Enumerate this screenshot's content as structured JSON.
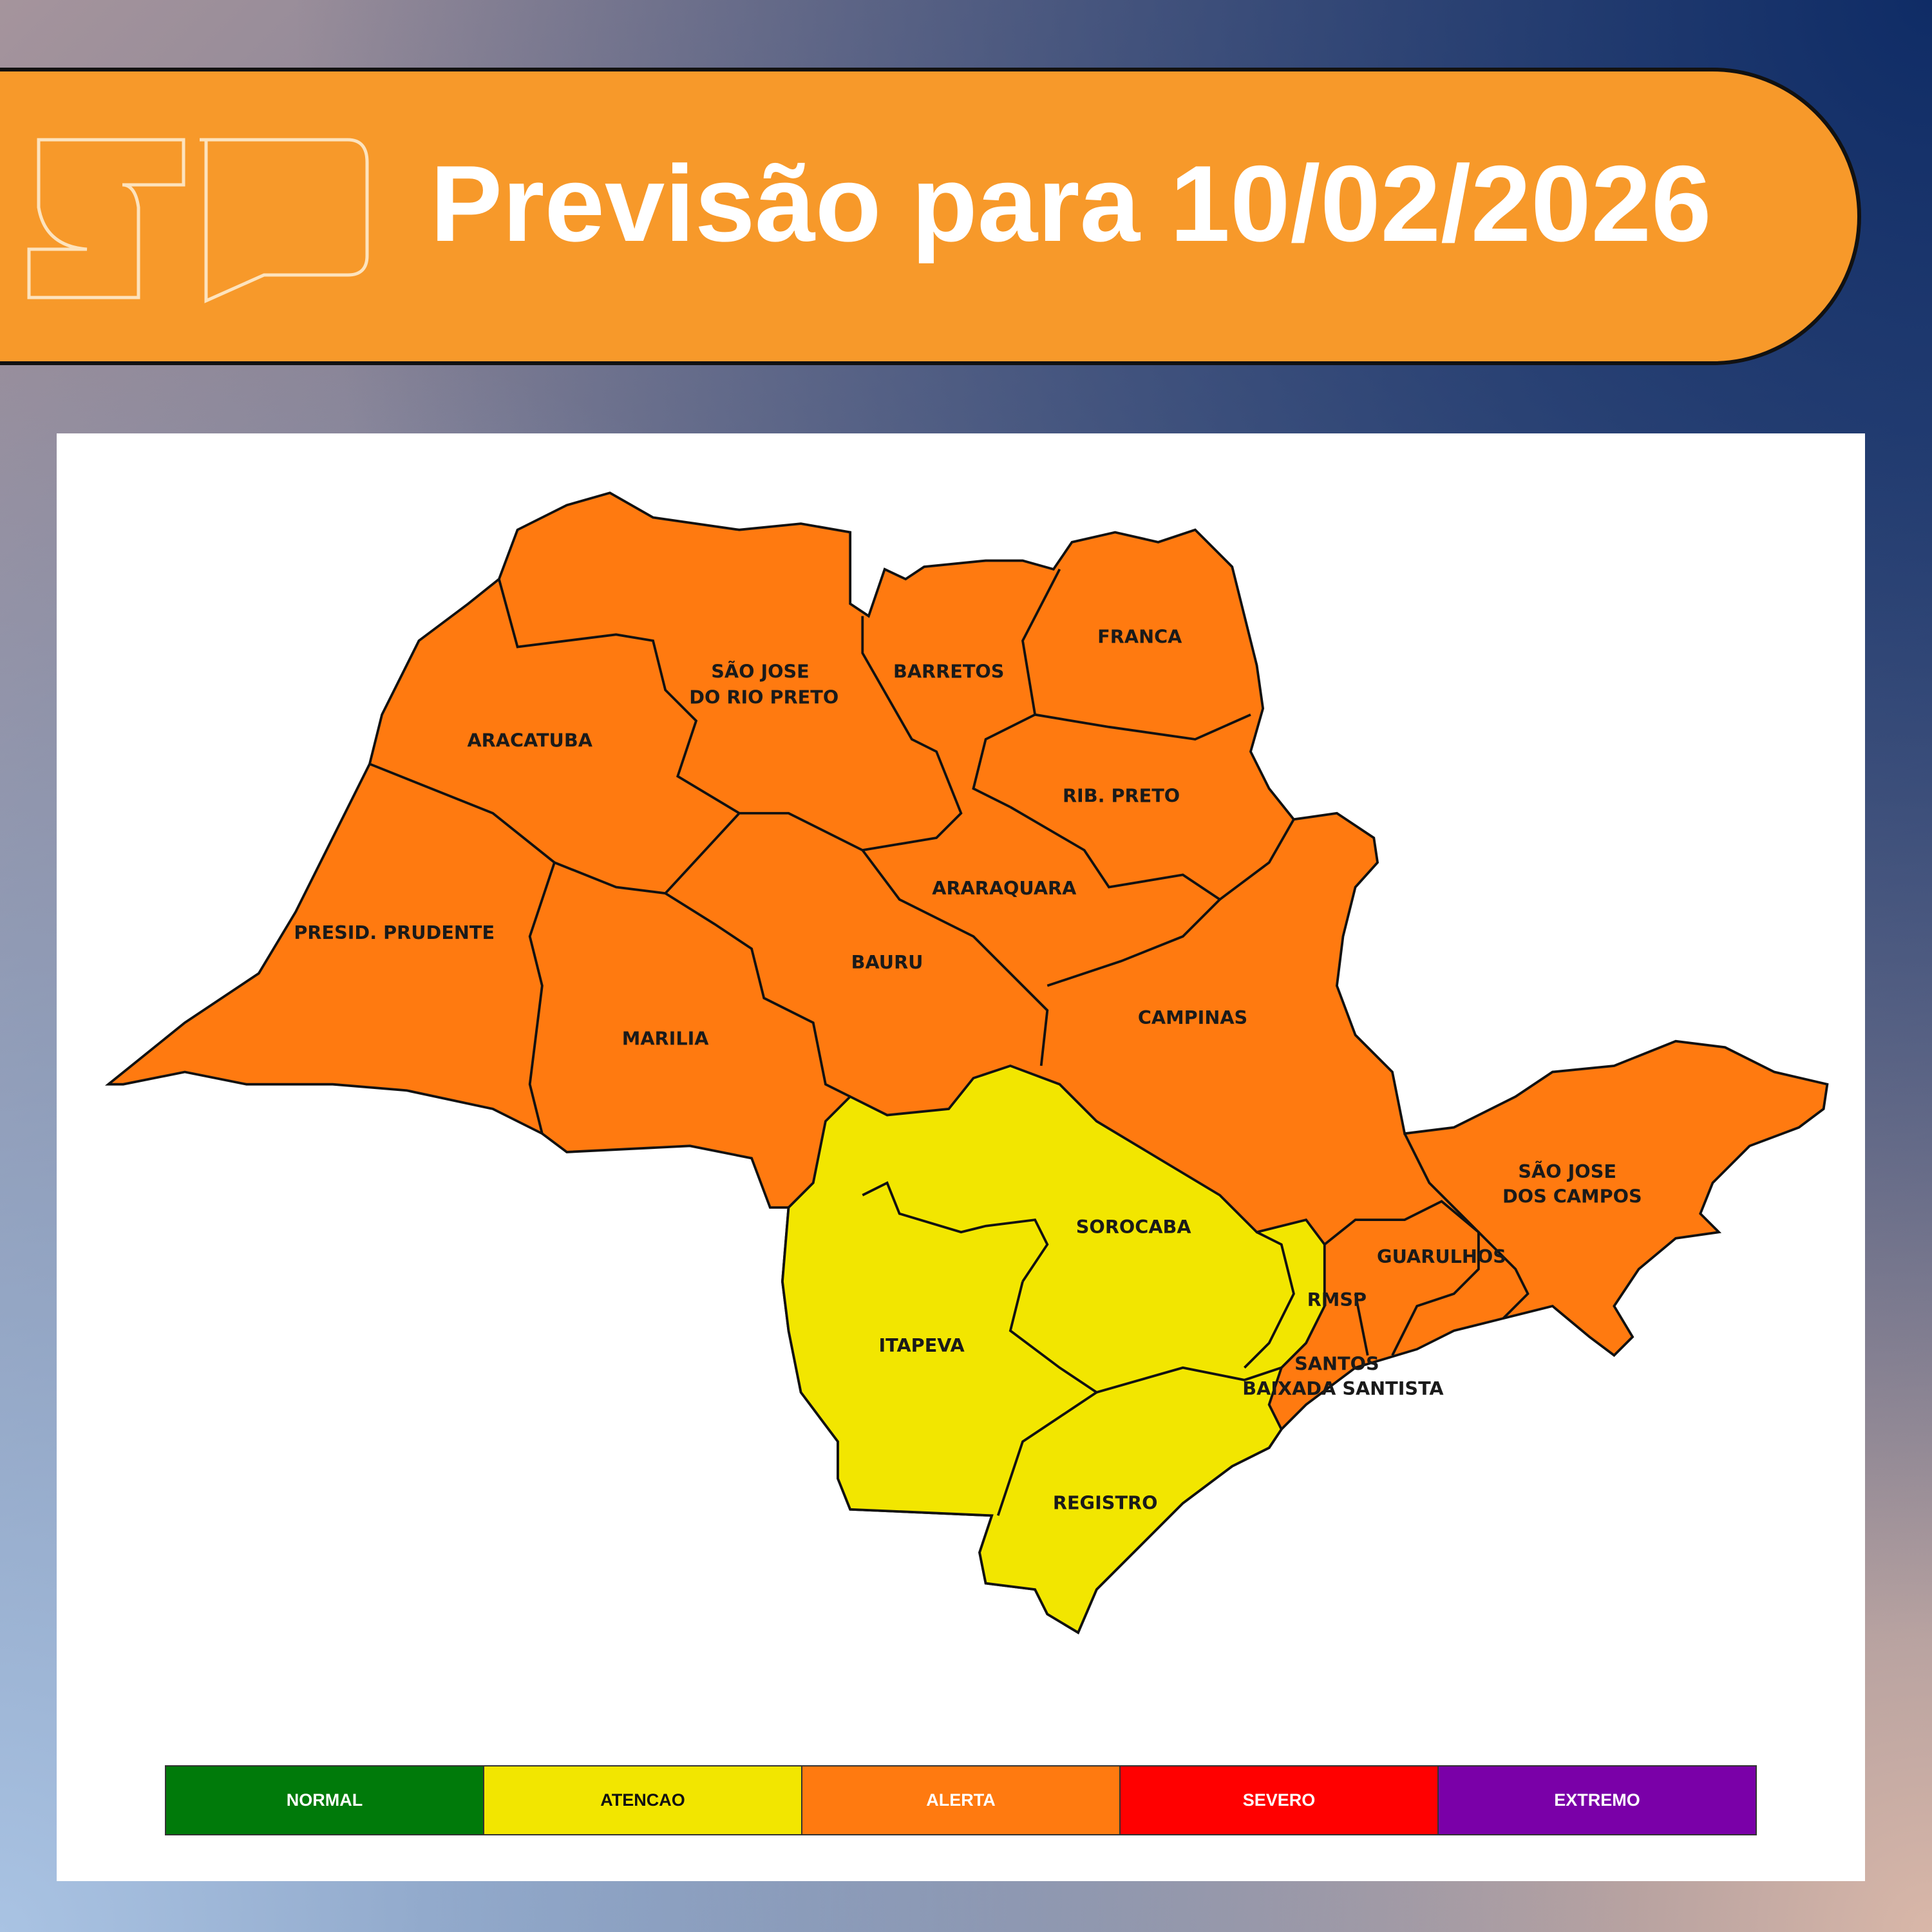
{
  "header": {
    "title": "Previsão para 10/02/2026",
    "logo_text": "SP"
  },
  "colors": {
    "header": "#f7992a",
    "alerta": "#ff7a10",
    "atencao": "#f2e600",
    "normal": "#007a0a",
    "severo": "#ff0000",
    "extremo": "#7a00a8"
  },
  "map": {
    "regions": [
      {
        "name": "FRANCA",
        "level": "ALERTA"
      },
      {
        "name": "BARRETOS",
        "level": "ALERTA"
      },
      {
        "name": "SÃO JOSE",
        "name2": "DO RIO PRETO",
        "level": "ALERTA"
      },
      {
        "name": "ARACATUBA",
        "level": "ALERTA"
      },
      {
        "name": "RIB. PRETO",
        "level": "ALERTA"
      },
      {
        "name": "ARARAQUARA",
        "level": "ALERTA"
      },
      {
        "name": "PRESID. PRUDENTE",
        "level": "ALERTA"
      },
      {
        "name": "BAURU",
        "level": "ALERTA"
      },
      {
        "name": "CAMPINAS",
        "level": "ALERTA"
      },
      {
        "name": "MARILIA",
        "level": "ALERTA"
      },
      {
        "name": "SÃO JOSE",
        "name2": "DOS CAMPOS",
        "level": "ALERTA"
      },
      {
        "name": "SOROCABA",
        "level": "ATENCAO"
      },
      {
        "name": "GUARULHOS",
        "level": "ALERTA"
      },
      {
        "name": "RMSP",
        "level": "ALERTA"
      },
      {
        "name": "ITAPEVA",
        "level": "ATENCAO"
      },
      {
        "name": "SANTOS",
        "name2": "BAIXADA SANTISTA",
        "level": "ALERTA"
      },
      {
        "name": "REGISTRO",
        "level": "ATENCAO"
      }
    ]
  },
  "legend": [
    {
      "label": "NORMAL",
      "color": "#007a0a",
      "text": "#ffffff"
    },
    {
      "label": "ATENCAO",
      "color": "#f2e600",
      "text": "#111111"
    },
    {
      "label": "ALERTA",
      "color": "#ff7a10",
      "text": "#ffffff"
    },
    {
      "label": "SEVERO",
      "color": "#ff0000",
      "text": "#ffffff"
    },
    {
      "label": "EXTREMO",
      "color": "#7a00a8",
      "text": "#ffffff"
    }
  ]
}
